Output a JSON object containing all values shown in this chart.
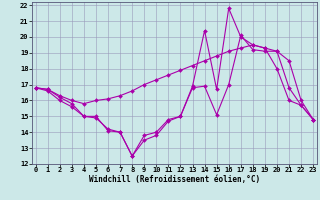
{
  "xlabel": "Windchill (Refroidissement éolien,°C)",
  "bg_color": "#cce8e8",
  "line_color": "#aa00aa",
  "xlim": [
    -0.3,
    23.3
  ],
  "ylim": [
    12,
    22.2
  ],
  "xticks": [
    0,
    1,
    2,
    3,
    4,
    5,
    6,
    7,
    8,
    9,
    10,
    11,
    12,
    13,
    14,
    15,
    16,
    17,
    18,
    19,
    20,
    21,
    22,
    23
  ],
  "yticks": [
    12,
    13,
    14,
    15,
    16,
    17,
    18,
    19,
    20,
    21,
    22
  ],
  "line1": {
    "x": [
      0,
      1,
      2,
      3,
      4,
      5,
      6,
      7,
      8,
      9,
      10,
      11,
      12,
      13,
      14,
      15,
      16,
      17,
      18,
      19,
      20,
      21,
      22,
      23
    ],
    "y": [
      16.8,
      16.7,
      16.3,
      16.0,
      15.8,
      16.0,
      16.1,
      16.3,
      16.6,
      17.0,
      17.3,
      17.6,
      17.9,
      18.2,
      18.5,
      18.8,
      19.1,
      19.3,
      19.5,
      19.3,
      19.1,
      18.5,
      16.0,
      14.8
    ]
  },
  "line2": {
    "x": [
      0,
      1,
      2,
      3,
      4,
      5,
      6,
      7,
      8,
      9,
      10,
      11,
      12,
      13,
      14,
      15,
      16,
      17,
      18,
      19,
      20,
      21,
      22,
      23
    ],
    "y": [
      16.8,
      16.7,
      16.2,
      15.8,
      15.0,
      15.0,
      14.1,
      14.0,
      12.5,
      13.8,
      14.0,
      14.8,
      15.0,
      16.9,
      20.4,
      16.7,
      21.8,
      20.0,
      19.5,
      19.3,
      18.0,
      16.0,
      15.7,
      14.8
    ]
  },
  "line3": {
    "x": [
      0,
      1,
      2,
      3,
      4,
      5,
      6,
      7,
      8,
      9,
      10,
      11,
      12,
      13,
      14,
      15,
      16,
      17,
      18,
      19,
      20,
      21,
      22,
      23
    ],
    "y": [
      16.8,
      16.6,
      16.0,
      15.6,
      15.0,
      14.9,
      14.2,
      14.0,
      12.5,
      13.5,
      13.8,
      14.7,
      15.0,
      16.8,
      16.9,
      15.1,
      17.0,
      20.1,
      19.2,
      19.1,
      19.1,
      16.8,
      15.7,
      14.8
    ]
  },
  "tick_fontsize": 5.0,
  "xlabel_fontsize": 5.5,
  "marker_size": 2.0,
  "linewidth": 0.8
}
